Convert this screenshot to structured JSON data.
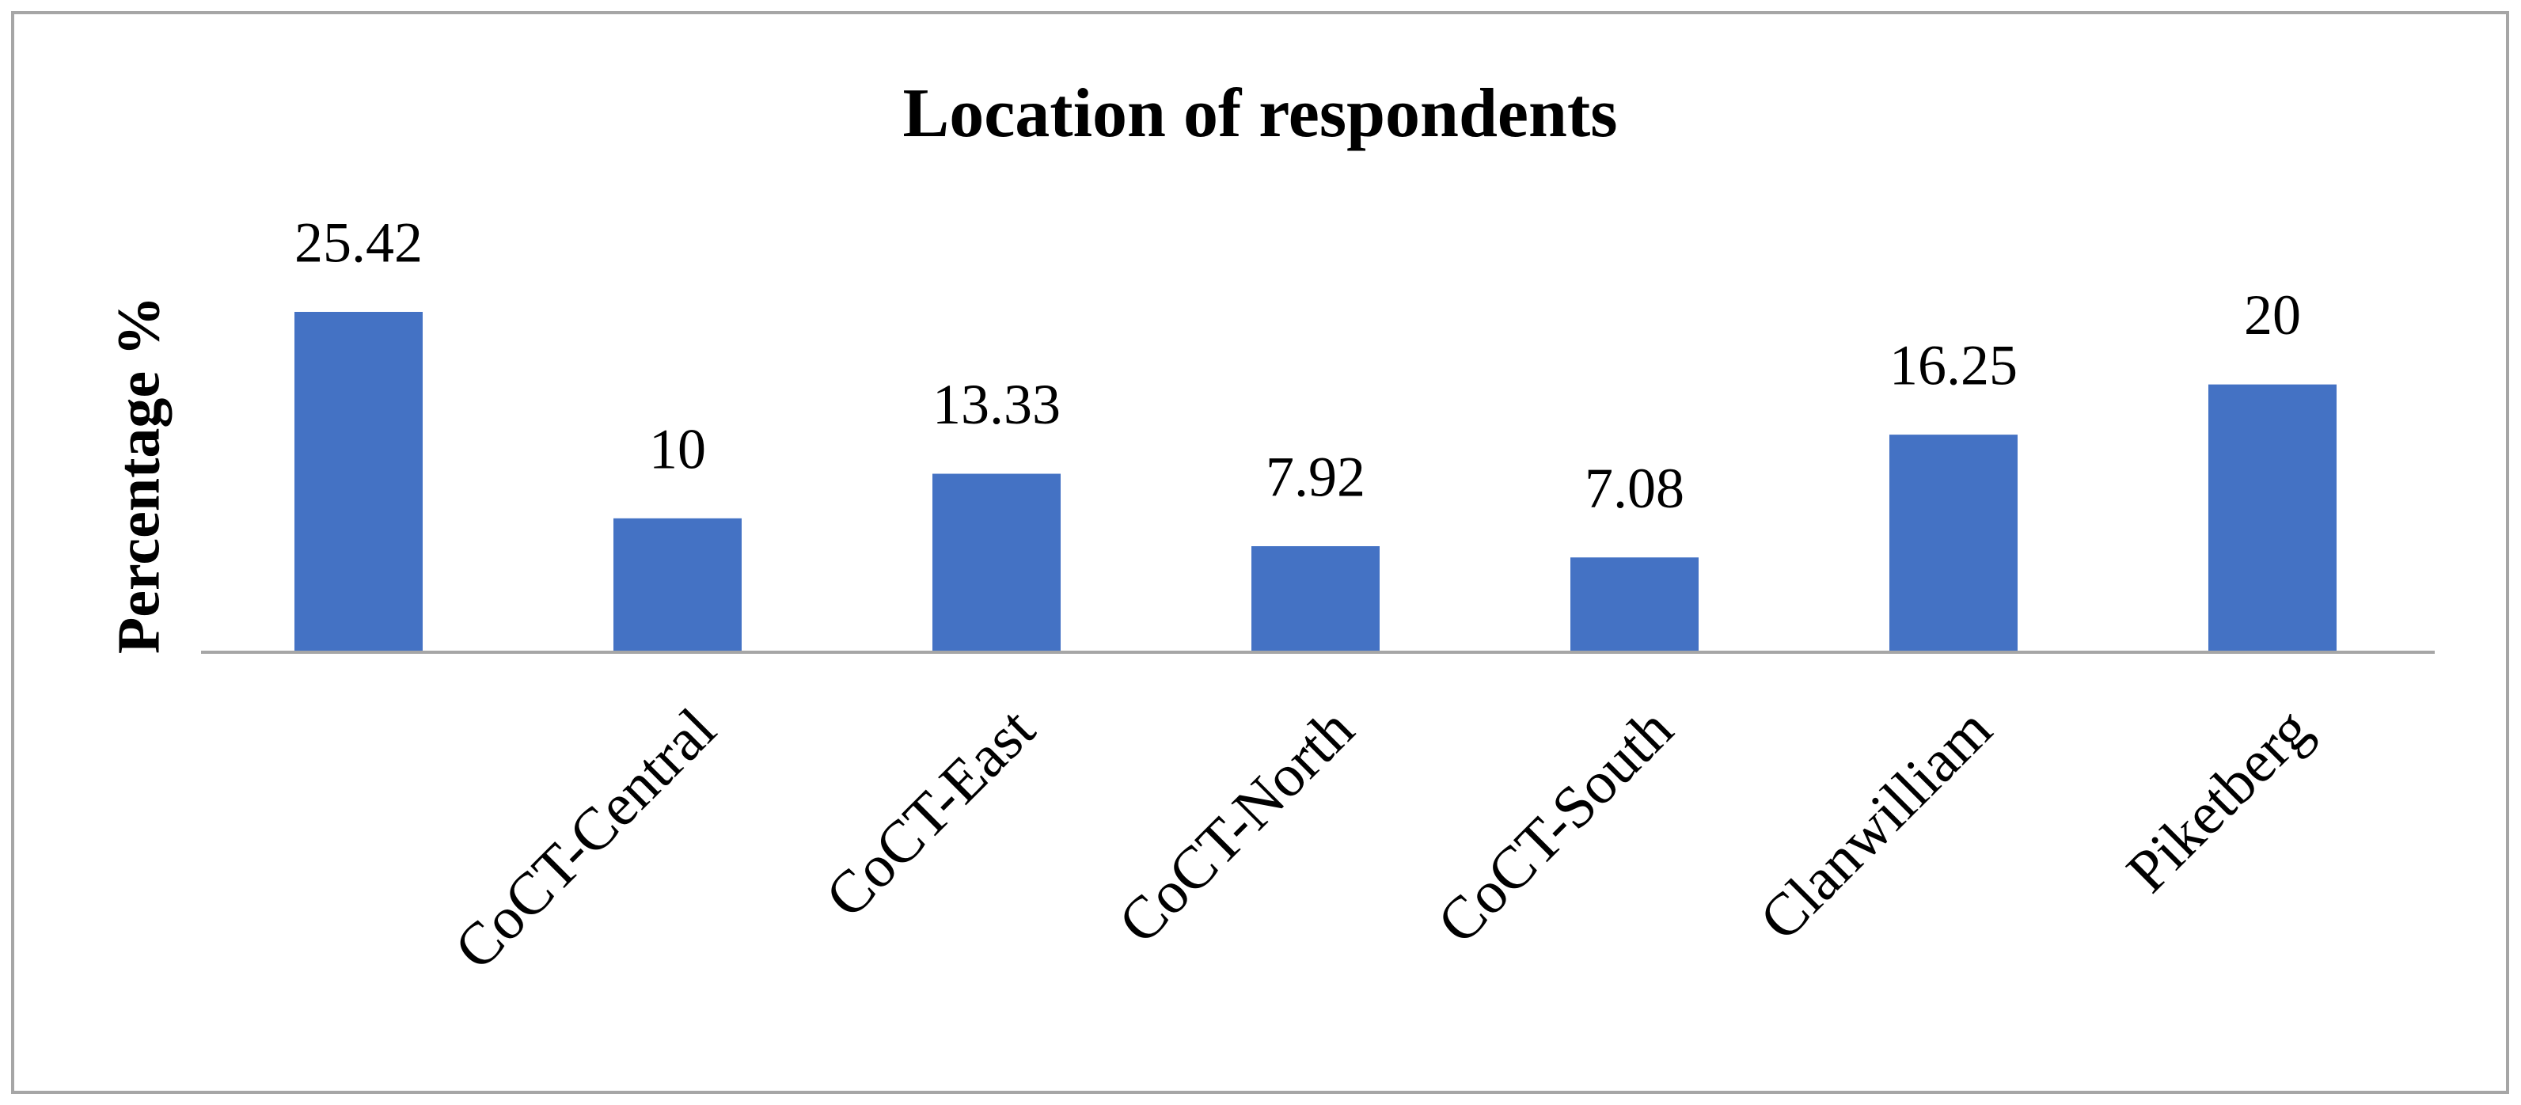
{
  "chart_data": {
    "type": "bar",
    "title": "Location of respondents",
    "y_label": "Percentage %",
    "categories": [
      null,
      "CoCT-Central",
      "CoCT-East",
      "CoCT-North",
      "CoCT-South",
      "Clanwilliam",
      "Piketberg"
    ],
    "values": [
      25.42,
      10,
      13.33,
      7.92,
      7.08,
      16.25,
      20
    ],
    "color": "#4472c4"
  }
}
